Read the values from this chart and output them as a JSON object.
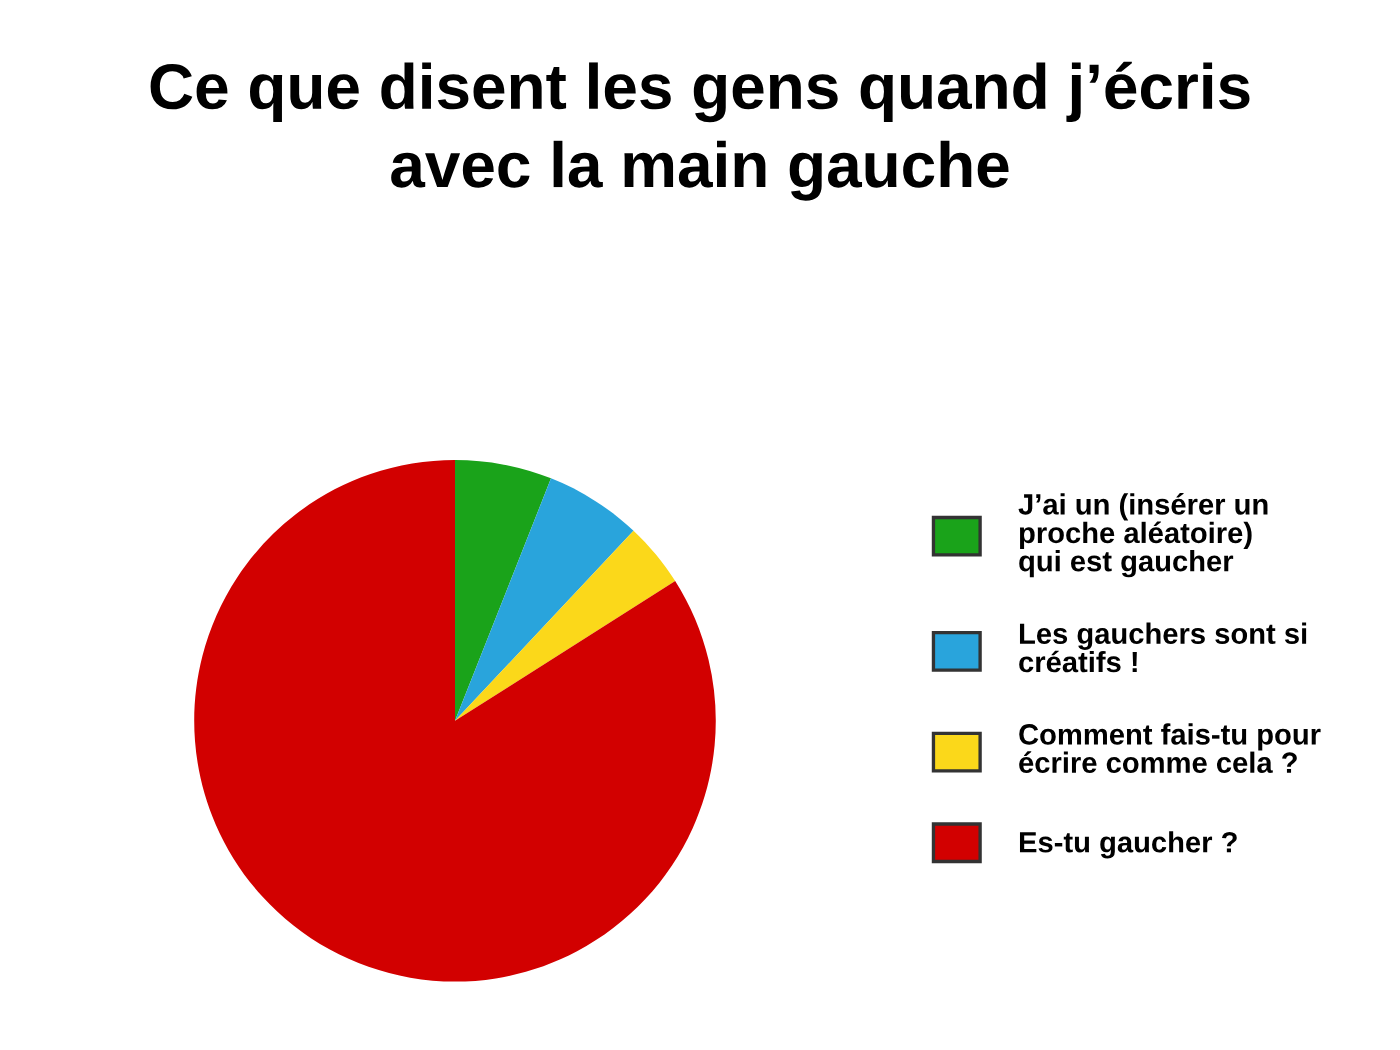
{
  "chart_data": {
    "type": "pie",
    "title": "Ce que disent les gens quand j’écris\navec la main gauche",
    "categories": [
      "J’ai un (insérer un\nproche aléatoire)\nqui est gaucher",
      "Les gauchers sont si\ncréatifs !",
      "Comment fais-tu pour\nécrire comme cela ?",
      "Es-tu gaucher ?"
    ],
    "values": [
      6,
      6,
      4,
      84
    ],
    "colors": [
      "#1aa31a",
      "#29a4dc",
      "#fbd81a",
      "#d20000"
    ],
    "legend": "right"
  }
}
